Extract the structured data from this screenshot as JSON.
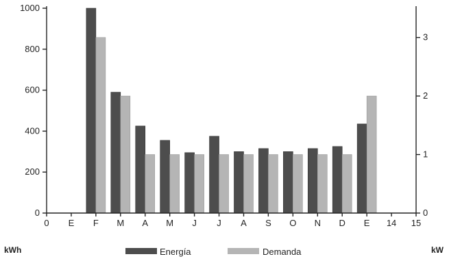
{
  "chart_data": {
    "type": "bar",
    "categories": [
      "E",
      "F",
      "M",
      "A",
      "M",
      "J",
      "J",
      "A",
      "S",
      "O",
      "N",
      "D",
      "E"
    ],
    "x_tick_labels": [
      "0",
      "E",
      "F",
      "M",
      "A",
      "M",
      "J",
      "J",
      "A",
      "S",
      "O",
      "N",
      "D",
      "E",
      "14",
      "15"
    ],
    "series": [
      {
        "name": "Energía",
        "axis": "left",
        "color": "#4d4d4d",
        "values": [
          0,
          1000,
          590,
          425,
          355,
          295,
          375,
          300,
          315,
          300,
          315,
          325,
          435
        ]
      },
      {
        "name": "Demanda",
        "axis": "right",
        "color": "#b5b5b5",
        "values": [
          0,
          3.0,
          2.0,
          1.0,
          1.0,
          1.0,
          1.0,
          1.0,
          1.0,
          1.0,
          1.0,
          1.0,
          2.0
        ]
      }
    ],
    "y_left": {
      "label": "kWh",
      "ticks": [
        "0",
        "200",
        "400",
        "600",
        "800",
        "1000"
      ],
      "lim": [
        0,
        1000
      ]
    },
    "y_right": {
      "label": "kW",
      "ticks": [
        "0",
        "1",
        "2",
        "3"
      ],
      "lim": [
        0,
        3.5
      ]
    },
    "xlim": [
      0,
      15
    ],
    "legend": {
      "position": "bottom",
      "labels": [
        "Energía",
        "Demanda"
      ]
    },
    "grid": false
  }
}
